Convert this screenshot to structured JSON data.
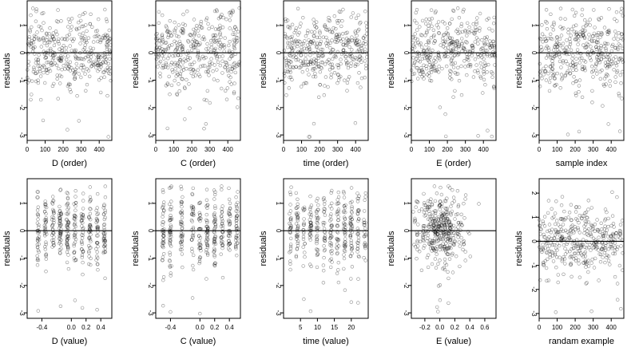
{
  "chart_data": [
    {
      "type": "scatter",
      "xlabel": "D (order)",
      "ylabel": "residuals",
      "xticks": [
        "0",
        "100",
        "200",
        "300",
        "400"
      ],
      "xlim": [
        0,
        470
      ],
      "yticks": [
        "-3",
        "-2",
        "-1",
        "0",
        "1"
      ],
      "ylim": [
        -3.2,
        1.9
      ],
      "mode": "order",
      "seed": 11
    },
    {
      "type": "scatter",
      "xlabel": "C (order)",
      "ylabel": "residuals",
      "xticks": [
        "0",
        "100",
        "200",
        "300",
        "400"
      ],
      "xlim": [
        0,
        470
      ],
      "yticks": [
        "-3",
        "-2",
        "-1",
        "0",
        "1"
      ],
      "ylim": [
        -3.2,
        1.9
      ],
      "mode": "order",
      "seed": 23
    },
    {
      "type": "scatter",
      "xlabel": "time (order)",
      "ylabel": "residuals",
      "xticks": [
        "0",
        "100",
        "200",
        "300",
        "400"
      ],
      "xlim": [
        0,
        470
      ],
      "yticks": [
        "-3",
        "-2",
        "-1",
        "0",
        "1"
      ],
      "ylim": [
        -3.2,
        1.9
      ],
      "mode": "order",
      "seed": 37
    },
    {
      "type": "scatter",
      "xlabel": "E (order)",
      "ylabel": "residuals",
      "xticks": [
        "0",
        "100",
        "200",
        "300",
        "400"
      ],
      "xlim": [
        0,
        470
      ],
      "yticks": [
        "-3",
        "-2",
        "-1",
        "0",
        "1"
      ],
      "ylim": [
        -3.2,
        1.9
      ],
      "mode": "order",
      "seed": 41
    },
    {
      "type": "scatter",
      "xlabel": "sample index",
      "ylabel": "residuals",
      "xticks": [
        "0",
        "100",
        "200",
        "300",
        "400"
      ],
      "xlim": [
        0,
        470
      ],
      "yticks": [
        "-3",
        "-2",
        "-1",
        "0",
        "1"
      ],
      "ylim": [
        -3.2,
        1.9
      ],
      "mode": "order",
      "seed": 53
    },
    {
      "type": "scatter",
      "xlabel": "D (value)",
      "ylabel": "residuals",
      "xticks": [
        "-0.4",
        "0.0",
        "0.2",
        "0.4"
      ],
      "xlim": [
        -0.6,
        0.55
      ],
      "yticks": [
        "-3",
        "-2",
        "-1",
        "0",
        "1"
      ],
      "ylim": [
        -3.2,
        1.9
      ],
      "mode": "cluster",
      "centers": [
        -0.45,
        -0.35,
        -0.25,
        -0.15,
        -0.05,
        0.05,
        0.15,
        0.25,
        0.35,
        0.45
      ],
      "seed": 61
    },
    {
      "type": "scatter",
      "xlabel": "C (value)",
      "ylabel": "residuals",
      "xticks": [
        "-0.4",
        "0.0",
        "0.2",
        "0.4"
      ],
      "xlim": [
        -0.6,
        0.55
      ],
      "yticks": [
        "-3",
        "-2",
        "-1",
        "0",
        "1"
      ],
      "ylim": [
        -3.2,
        1.9
      ],
      "mode": "cluster",
      "centers": [
        -0.5,
        -0.4,
        -0.25,
        -0.1,
        0.0,
        0.1,
        0.2,
        0.3,
        0.4,
        0.5
      ],
      "seed": 71
    },
    {
      "type": "scatter",
      "xlabel": "time (value)",
      "ylabel": "residuals",
      "xticks": [
        "5",
        "10",
        "15",
        "20"
      ],
      "xlim": [
        0,
        25
      ],
      "yticks": [
        "-3",
        "-2",
        "-1",
        "0",
        "1"
      ],
      "ylim": [
        -3.2,
        1.9
      ],
      "mode": "cluster",
      "centers": [
        2,
        4,
        6,
        8,
        10,
        12,
        14,
        16,
        18,
        20,
        22,
        24
      ],
      "seed": 83
    },
    {
      "type": "scatter",
      "xlabel": "E (value)",
      "ylabel": "residuals",
      "xticks": [
        "-0.2",
        "0.0",
        "0.2",
        "0.4",
        "0.6"
      ],
      "xlim": [
        -0.38,
        0.75
      ],
      "yticks": [
        "-3",
        "-2",
        "-1",
        "0",
        "1"
      ],
      "ylim": [
        -3.2,
        1.9
      ],
      "mode": "normal",
      "seed": 97
    },
    {
      "type": "scatter",
      "xlabel": "randam example",
      "ylabel": "residuals",
      "xticks": [
        "0",
        "100",
        "200",
        "300",
        "400"
      ],
      "xlim": [
        0,
        470
      ],
      "yticks": [
        "-3",
        "-2",
        "-1",
        "0",
        "1",
        "2"
      ],
      "ylim": [
        -3.2,
        2.6
      ],
      "mode": "order",
      "seed": 101
    }
  ]
}
